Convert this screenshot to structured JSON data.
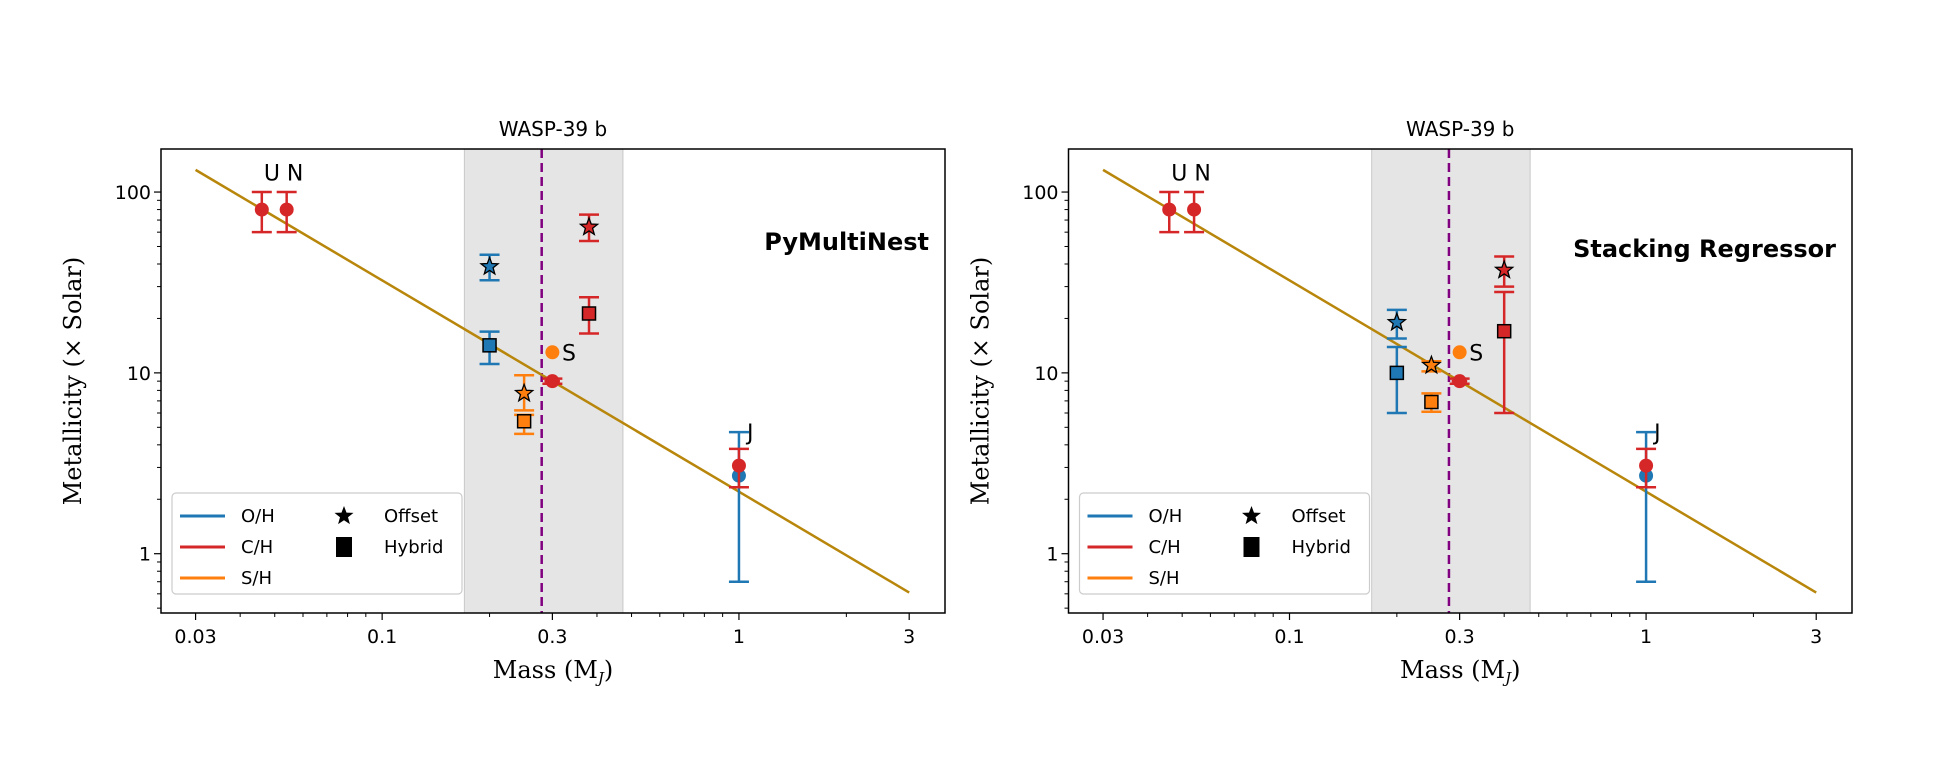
{
  "chart_data": [
    {
      "type": "scatter",
      "title": "WASP-39 b",
      "method_label": "PyMultiNest",
      "xlabel": "Mass (M",
      "xlabel_sub": "J",
      "xlabel_end": ")",
      "ylabel": "Metallicity (× Solar)",
      "xscale": "log",
      "yscale": "log",
      "xlim": [
        0.024,
        3.78
      ],
      "ylim": [
        0.47,
        173
      ],
      "xticks": [
        0.03,
        0.1,
        0.3,
        1,
        3
      ],
      "xtick_labels": [
        "0.03",
        "0.1",
        "0.3",
        "1",
        "3"
      ],
      "yticks": [
        1,
        10,
        100
      ],
      "ytick_labels": [
        "1",
        "10",
        "100"
      ],
      "grid": false,
      "shaded_mass_range": [
        0.17,
        0.473
      ],
      "planet_mass_line": 0.28,
      "fit_line": {
        "x": [
          0.03,
          3
        ],
        "y": [
          132.6,
          0.61
        ]
      },
      "points": [
        {
          "element": "C/H",
          "marker": "circle",
          "x": 0.046,
          "y": 80,
          "yerr": [
            60,
            100
          ]
        },
        {
          "element": "C/H",
          "marker": "circle",
          "x": 0.054,
          "y": 80,
          "yerr": [
            60,
            100
          ]
        },
        {
          "element": "O/H",
          "marker": "circle",
          "x": 1,
          "y": 2.7,
          "yerr": [
            0.7,
            4.7
          ]
        },
        {
          "element": "C/H",
          "marker": "circle",
          "x": 1,
          "y": 3.07,
          "yerr": [
            2.33,
            3.8
          ]
        },
        {
          "element": "S/H",
          "marker": "circle",
          "x": 0.3,
          "y": 13,
          "xerr": [
            0.29,
            0.31
          ]
        },
        {
          "element": "C/H",
          "marker": "circle",
          "x": 0.3,
          "y": 9,
          "xerr": [
            0.285,
            0.315
          ],
          "yerr": [
            8.7,
            9.3
          ]
        },
        {
          "element": "O/H",
          "marker": "star",
          "x": 0.2,
          "y": 38.7,
          "yerr": [
            32.5,
            45
          ]
        },
        {
          "element": "O/H",
          "marker": "square",
          "x": 0.2,
          "y": 14.2,
          "yerr": [
            11.2,
            16.9
          ]
        },
        {
          "element": "S/H",
          "marker": "star",
          "x": 0.25,
          "y": 7.7,
          "yerr": [
            6.2,
            9.7
          ]
        },
        {
          "element": "S/H",
          "marker": "square",
          "x": 0.25,
          "y": 5.4,
          "yerr": [
            4.6,
            5.86
          ]
        },
        {
          "element": "C/H",
          "marker": "star",
          "x": 0.38,
          "y": 64,
          "yerr": [
            53.6,
            75
          ]
        },
        {
          "element": "C/H",
          "marker": "square",
          "x": 0.38,
          "y": 21.3,
          "yerr": [
            16.5,
            26.2
          ]
        }
      ],
      "annotations": [
        {
          "text": "U N",
          "x": 0.046,
          "y": 128
        },
        {
          "text": "S",
          "x": 0.315,
          "y": 13
        },
        {
          "text": "J",
          "x": 1.04,
          "y": 4.7
        }
      ]
    },
    {
      "type": "scatter",
      "title": "WASP-39 b",
      "method_label": "Stacking Regressor",
      "xlabel": "Mass (M",
      "xlabel_sub": "J",
      "xlabel_end": ")",
      "ylabel": "Metallicity (× Solar)",
      "xscale": "log",
      "yscale": "log",
      "xlim": [
        0.024,
        3.78
      ],
      "ylim": [
        0.47,
        173
      ],
      "xticks": [
        0.03,
        0.1,
        0.3,
        1,
        3
      ],
      "xtick_labels": [
        "0.03",
        "0.1",
        "0.3",
        "1",
        "3"
      ],
      "yticks": [
        1,
        10,
        100
      ],
      "ytick_labels": [
        "1",
        "10",
        "100"
      ],
      "grid": false,
      "shaded_mass_range": [
        0.17,
        0.473
      ],
      "planet_mass_line": 0.28,
      "fit_line": {
        "x": [
          0.03,
          3
        ],
        "y": [
          132.6,
          0.61
        ]
      },
      "points": [
        {
          "element": "C/H",
          "marker": "circle",
          "x": 0.046,
          "y": 80,
          "yerr": [
            60,
            100
          ]
        },
        {
          "element": "C/H",
          "marker": "circle",
          "x": 0.054,
          "y": 80,
          "yerr": [
            60,
            100
          ]
        },
        {
          "element": "O/H",
          "marker": "circle",
          "x": 1,
          "y": 2.7,
          "yerr": [
            0.7,
            4.7
          ]
        },
        {
          "element": "C/H",
          "marker": "circle",
          "x": 1,
          "y": 3.07,
          "yerr": [
            2.33,
            3.8
          ]
        },
        {
          "element": "S/H",
          "marker": "circle",
          "x": 0.3,
          "y": 13,
          "xerr": [
            0.29,
            0.31
          ]
        },
        {
          "element": "C/H",
          "marker": "circle",
          "x": 0.3,
          "y": 9,
          "xerr": [
            0.285,
            0.315
          ],
          "yerr": [
            8.7,
            9.3
          ]
        },
        {
          "element": "O/H",
          "marker": "star",
          "x": 0.2,
          "y": 19,
          "yerr": [
            15.5,
            22.3
          ]
        },
        {
          "element": "O/H",
          "marker": "square",
          "x": 0.2,
          "y": 10,
          "yerr": [
            6.0,
            13.9
          ]
        },
        {
          "element": "S/H",
          "marker": "star",
          "x": 0.25,
          "y": 11,
          "yerr": [
            10.2,
            11.6
          ]
        },
        {
          "element": "S/H",
          "marker": "square",
          "x": 0.25,
          "y": 6.9,
          "yerr": [
            6.1,
            7.7
          ]
        },
        {
          "element": "C/H",
          "marker": "star",
          "x": 0.4,
          "y": 37,
          "yerr": [
            30,
            44
          ]
        },
        {
          "element": "C/H",
          "marker": "square",
          "x": 0.4,
          "y": 17,
          "yerr": [
            6.0,
            28
          ]
        }
      ],
      "annotations": [
        {
          "text": "U N",
          "x": 0.046,
          "y": 128
        },
        {
          "text": "S",
          "x": 0.315,
          "y": 13
        },
        {
          "text": "J",
          "x": 1.04,
          "y": 4.7
        }
      ]
    }
  ],
  "legend": {
    "placement": "lower-left",
    "lines": [
      {
        "label": "O/H",
        "color": "#1f77b4"
      },
      {
        "label": "C/H",
        "color": "#d62728"
      },
      {
        "label": "S/H",
        "color": "#ff7f0e"
      }
    ],
    "markers": [
      {
        "label": "Offset",
        "marker": "star"
      },
      {
        "label": "Hybrid",
        "marker": "square"
      }
    ]
  },
  "colors": {
    "O/H": "#1f77b4",
    "C/H": "#d62728",
    "S/H": "#ff7f0e",
    "fit_line": "#b8860b",
    "planet_mass_line": "#800080",
    "shaded": "#e5e5e5"
  }
}
